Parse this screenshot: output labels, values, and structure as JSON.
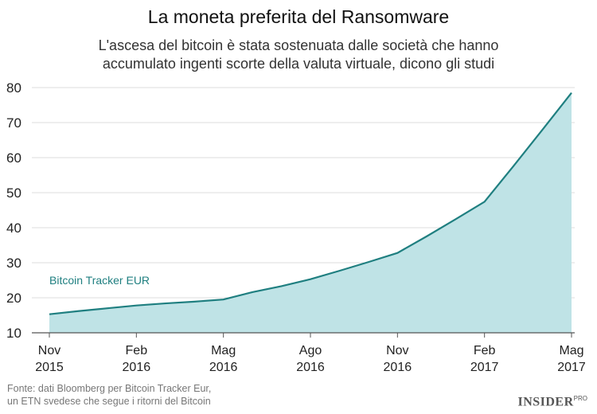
{
  "header": {
    "title": "La moneta preferita del Ransomware",
    "subtitle_line1": "L'ascesa del bitcoin è stata sostenuata dalle società che hanno",
    "subtitle_line2": "accumulato ingenti scorte della valuta virtuale, dicono gli studi"
  },
  "footer": {
    "source_line1": "Fonte: dati Bloomberg per Bitcoin Tracker Eur,",
    "source_line2": "un ETN svedese che segue i ritorni del Bitcoin",
    "brand": "INSIDER",
    "brand_suffix": "PRO"
  },
  "colors": {
    "line": "#1f7f80",
    "area": "#bfe3e6",
    "grid": "#dddddd",
    "series_label": "#1f7f80"
  },
  "chart_data": {
    "type": "area",
    "title": "La moneta preferita del Ransomware",
    "xlabel": "",
    "ylabel": "",
    "ylim": [
      10,
      80
    ],
    "yticks": [
      10,
      20,
      30,
      40,
      50,
      60,
      70,
      80
    ],
    "grid": true,
    "x_tick_labels": [
      [
        "Nov",
        "2015"
      ],
      [
        "Feb",
        "2016"
      ],
      [
        "Mag",
        "2016"
      ],
      [
        "Ago",
        "2016"
      ],
      [
        "Nov",
        "2016"
      ],
      [
        "Feb",
        "2017"
      ],
      [
        "Mag",
        "2017"
      ]
    ],
    "series": [
      {
        "name": "Bitcoin Tracker EUR",
        "x": [
          "2015-11",
          "2015-12",
          "2016-01",
          "2016-02",
          "2016-03",
          "2016-04",
          "2016-05",
          "2016-06",
          "2016-07",
          "2016-08",
          "2016-09",
          "2016-10",
          "2016-11",
          "2016-12",
          "2017-01",
          "2017-02",
          "2017-03",
          "2017-04",
          "2017-05"
        ],
        "values": [
          15.3,
          16.2,
          17.0,
          17.8,
          18.4,
          18.9,
          19.5,
          21.6,
          23.3,
          25.3,
          27.7,
          30.2,
          32.8,
          37.5,
          42.4,
          47.4,
          57.6,
          68.0,
          78.5
        ]
      }
    ]
  }
}
